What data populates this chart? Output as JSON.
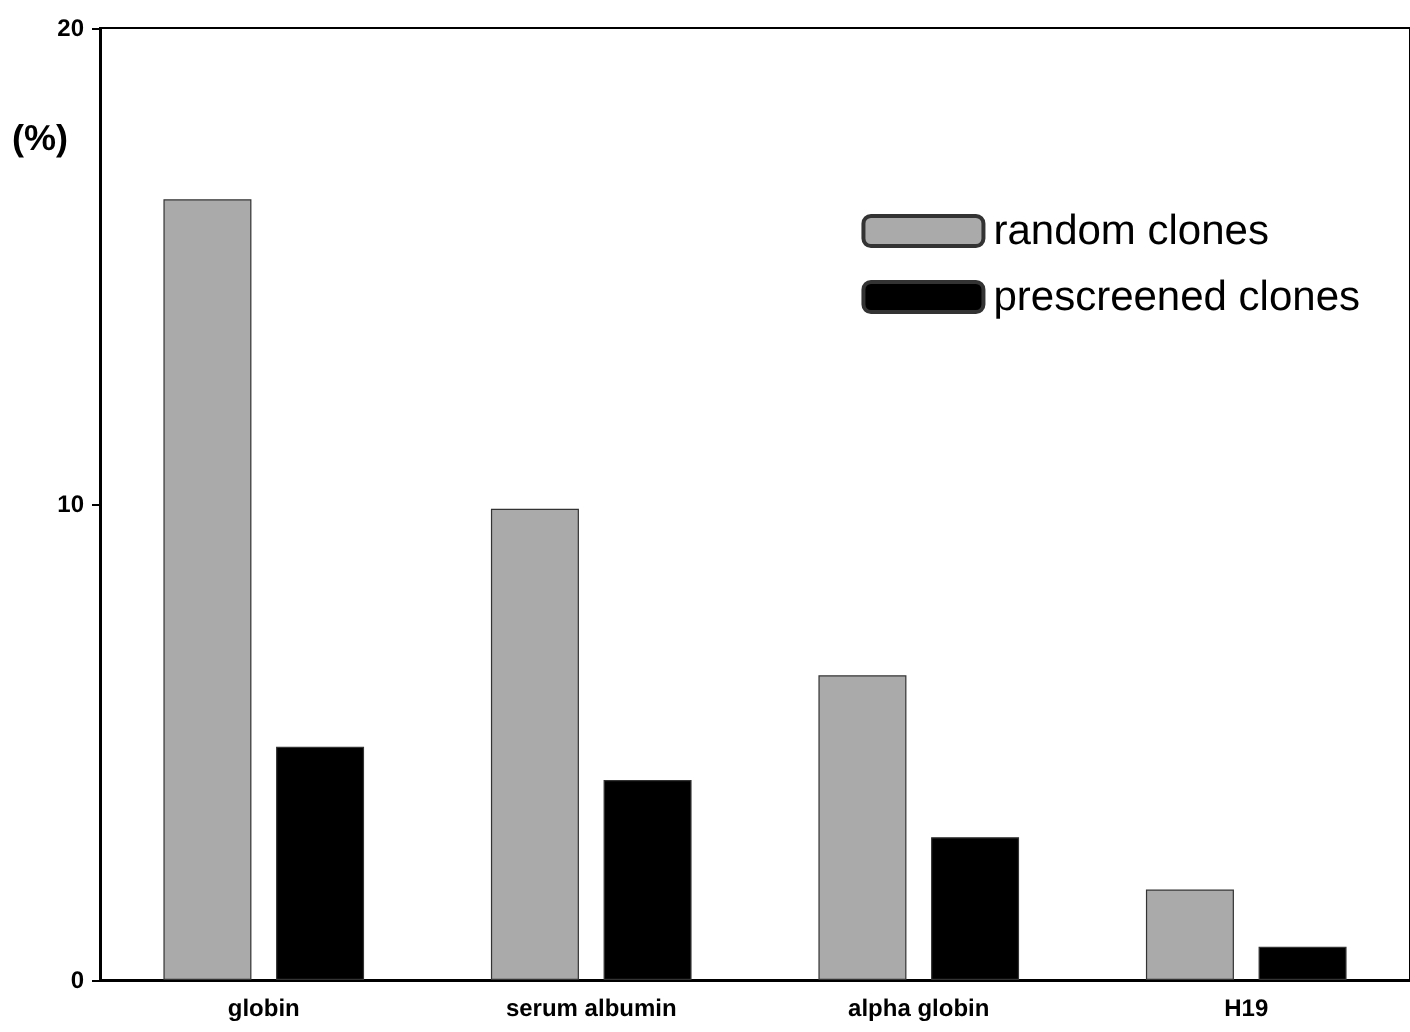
{
  "chart_data": {
    "type": "bar",
    "ylabel": "(%)",
    "categories": [
      "globin",
      "serum albumin",
      "alpha globin",
      "H19"
    ],
    "series": [
      {
        "name": "random clones",
        "color": "#aaaaaa",
        "values": [
          16.4,
          9.9,
          6.4,
          1.9
        ]
      },
      {
        "name": "prescreened clones",
        "color": "#000000",
        "values": [
          4.9,
          4.2,
          3.0,
          0.7
        ]
      }
    ],
    "ylim": [
      0,
      20
    ],
    "yticks": [
      0,
      10,
      20
    ],
    "grid": false,
    "legend": "top right"
  }
}
